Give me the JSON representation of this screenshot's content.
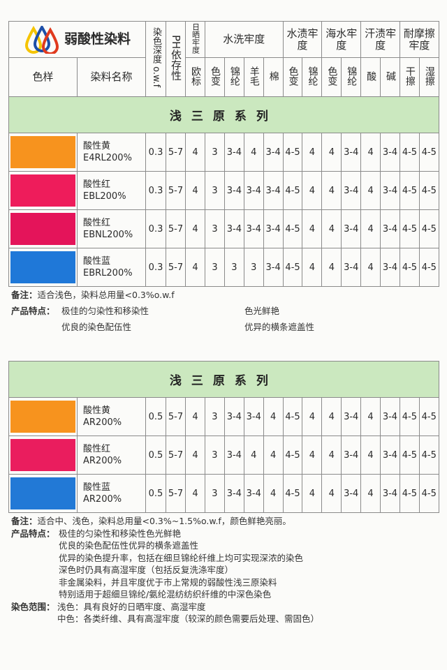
{
  "title": "弱酸性染料",
  "headers": {
    "swatch": "色样",
    "name": "染料名称",
    "depth": "染色深度",
    "depth_unit": "o.w.f",
    "ph": "PH依存性",
    "light": "日晒牢度",
    "wash": "水洗牢度",
    "water": "水渍牢度",
    "sea": "海水牢度",
    "sweat": "汗渍牢度",
    "rub": "耐摩擦牢度",
    "sub": [
      "欧标",
      "色变",
      "锦纶",
      "羊毛",
      "棉",
      "色变",
      "锦纶",
      "色变",
      "锦纶",
      "酸",
      "碱",
      "干擦",
      "湿擦"
    ]
  },
  "sections": [
    {
      "band": "浅三原系列",
      "rows": [
        {
          "color": "#f7931e",
          "name": "酸性黄",
          "code": "E4RL200%",
          "values": [
            "0.3",
            "5-7",
            "4",
            "3",
            "3-4",
            "4",
            "3-4",
            "4-5",
            "4",
            "4",
            "3-4",
            "4",
            "3-4",
            "4-5",
            "4-5"
          ]
        },
        {
          "color": "#ee1c5b",
          "name": "酸性红",
          "code": "EBL200%",
          "values": [
            "0.3",
            "5-7",
            "4",
            "3",
            "3-4",
            "3-4",
            "3-4",
            "4-5",
            "4",
            "4",
            "3-4",
            "4",
            "3-4",
            "4-5",
            "4-5"
          ]
        },
        {
          "color": "#e4145a",
          "name": "酸性红",
          "code": "EBNL200%",
          "values": [
            "0.3",
            "5-7",
            "4",
            "3",
            "3-4",
            "3-4",
            "3-4",
            "4-5",
            "4",
            "4",
            "3-4",
            "4",
            "3-4",
            "4-5",
            "4-5"
          ]
        },
        {
          "color": "#1f78d8",
          "name": "酸性蓝",
          "code": "EBRL200%",
          "values": [
            "0.3",
            "5-7",
            "4",
            "3",
            "3",
            "3",
            "3-4",
            "4-5",
            "4",
            "4",
            "3-4",
            "4",
            "3-4",
            "4-5",
            "4-5"
          ]
        }
      ]
    },
    {
      "band": "浅三原系列",
      "rows": [
        {
          "color": "#f7931e",
          "name": "酸性黄",
          "code": "AR200%",
          "values": [
            "0.5",
            "5-7",
            "4",
            "3",
            "3-4",
            "3-4",
            "4",
            "4-5",
            "4",
            "4",
            "3-4",
            "4",
            "3-4",
            "4-5",
            "4-5"
          ]
        },
        {
          "color": "#ea1d5e",
          "name": "酸性红",
          "code": "AR200%",
          "values": [
            "0.5",
            "5-7",
            "4",
            "3",
            "3-4",
            "4",
            "4",
            "4-5",
            "4",
            "4",
            "3-4",
            "4",
            "3-4",
            "4-5",
            "4-5"
          ]
        },
        {
          "color": "#2279d6",
          "name": "酸性蓝",
          "code": "AR200%",
          "values": [
            "0.5",
            "5-7",
            "4",
            "3",
            "3-4",
            "3-4",
            "4",
            "4-5",
            "4",
            "4",
            "3-4",
            "4",
            "3-4",
            "4-5",
            "4-5"
          ]
        }
      ]
    }
  ],
  "notes1": {
    "remark_label": "备注：",
    "remark": "适合浅色，染料总用量<0.3%o.w.f",
    "feature_label": "产品特点：",
    "features": [
      "极佳的匀染性和移染性",
      "色光鲜艳",
      "优良的染色配伍性",
      "优异的横条遮盖性"
    ]
  },
  "notes2": {
    "remark_label": "备注：",
    "remark": "适合中、浅色，染料总用量<0.3%~1.5%o.w.f，颜色鲜艳亮丽。",
    "feature_label": "产品特点：",
    "features": [
      "极佳的匀染性和移染性色光鲜艳",
      "优良的染色配伍性优异的横条遮盖性",
      "优异的染色提升率，包括在细旦锦纶纤维上均可实现深浓的染色",
      "深色时仍具有高湿牢度（包括反复洗涤牢度）",
      "非金属染料，并且牢度优于市上常规的弱酸性浅三原染料",
      "特别适用于超细旦锦纶/氨纶混纺纺织纤维的中深色染色"
    ],
    "range_label": "染色范围：",
    "ranges": [
      "浅色：具有良好的日晒牢度、高湿牢度",
      "中色：各类纤维、具有高湿牢度（较深的颜色需要后处理、需固色）"
    ]
  }
}
